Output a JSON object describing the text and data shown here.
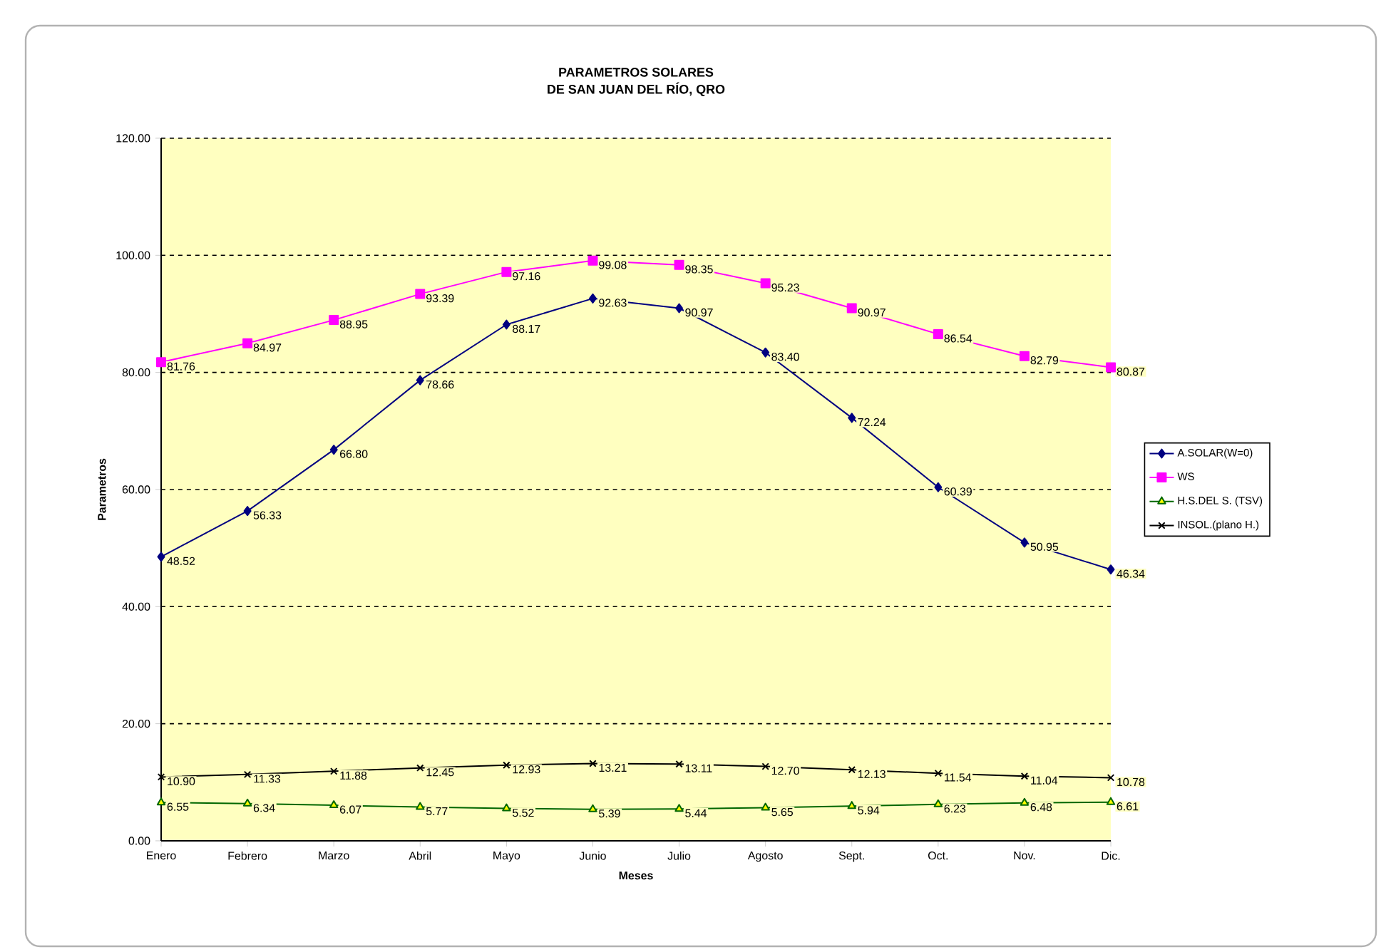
{
  "chart_data": {
    "type": "line",
    "title": "PARAMETROS  SOLARES",
    "subtitle": "DE SAN JUAN  DEL RÍO, QRO",
    "xlabel": "Meses",
    "ylabel": "Parametros",
    "categories": [
      "Enero",
      "Febrero",
      "Marzo",
      "Abril",
      "Mayo",
      "Junio",
      "Julio",
      "Agosto",
      "Sept.",
      "Oct.",
      "Nov.",
      "Dic."
    ],
    "series": [
      {
        "name": "A.SOLAR(W=0)",
        "color": "#000080",
        "marker": "diamond",
        "values": [
          48.52,
          56.33,
          66.8,
          78.66,
          88.17,
          92.63,
          90.97,
          83.4,
          72.24,
          60.39,
          50.95,
          46.34
        ],
        "value_labels": [
          "48.52",
          "56.33",
          "66.80",
          "78.66",
          "88.17",
          "92.63",
          "90.97",
          "83.40",
          "72.24",
          "60.39",
          "50.95",
          "46.34"
        ]
      },
      {
        "name": "WS",
        "color": "#ff00ff",
        "marker": "square",
        "values": [
          81.76,
          84.97,
          88.95,
          93.39,
          97.16,
          99.08,
          98.35,
          95.23,
          90.97,
          86.54,
          82.79,
          80.87
        ],
        "value_labels": [
          "81.76",
          "84.97",
          "88.95",
          "93.39",
          "97.16",
          "99.08",
          "98.35",
          "95.23",
          "90.97",
          "86.54",
          "82.79",
          "80.87"
        ]
      },
      {
        "name": "H.S.DEL S. (TSV)",
        "color": "#006600",
        "marker": "triangle",
        "values": [
          6.55,
          6.34,
          6.07,
          5.77,
          5.52,
          5.39,
          5.44,
          5.65,
          5.94,
          6.23,
          6.48,
          6.61
        ],
        "value_labels": [
          "6.55",
          "6.34",
          "6.07",
          "5.77",
          "5.52",
          "5.39",
          "5.44",
          "5.65",
          "5.94",
          "6.23",
          "6.48",
          "6.61"
        ]
      },
      {
        "name": "INSOL.(plano H.)",
        "color": "#000000",
        "marker": "cross",
        "values": [
          10.9,
          11.33,
          11.88,
          12.45,
          12.93,
          13.21,
          13.11,
          12.7,
          12.13,
          11.54,
          11.04,
          10.78
        ],
        "value_labels": [
          "10.90",
          "11.33",
          "11.88",
          "12.45",
          "12.93",
          "13.21",
          "13.11",
          "12.70",
          "12.13",
          "11.54",
          "11.04",
          "10.78"
        ]
      }
    ],
    "ylim": [
      0,
      120
    ],
    "yticks": [
      {
        "value": 0,
        "label": "0.00"
      },
      {
        "value": 20,
        "label": "20.00"
      },
      {
        "value": 40,
        "label": "40.00"
      },
      {
        "value": 60,
        "label": "60.00"
      },
      {
        "value": 80,
        "label": "80.00"
      },
      {
        "value": 100,
        "label": "100.00"
      },
      {
        "value": 120,
        "label": "120.00"
      }
    ],
    "grid": "y",
    "legend": "right",
    "line_style": "solid"
  }
}
